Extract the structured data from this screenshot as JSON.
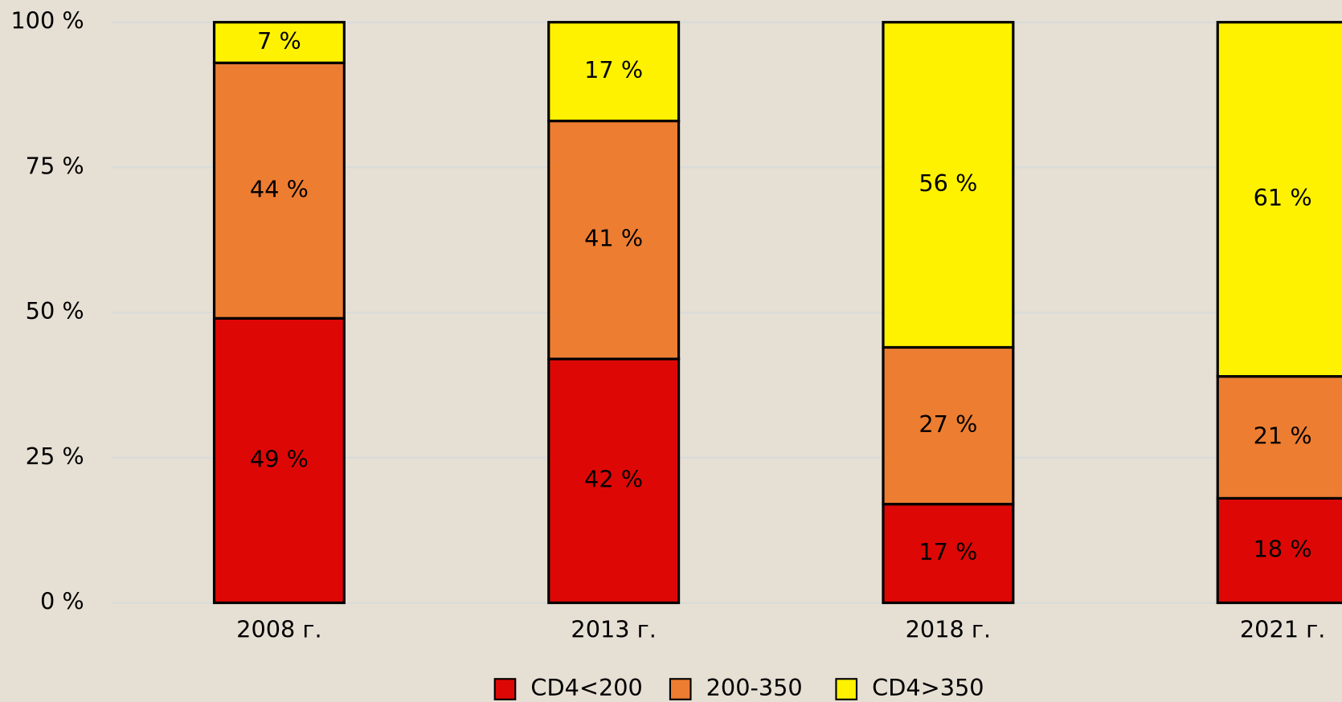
{
  "chart_data": {
    "type": "stacked_bar",
    "categories": [
      "2008 г.",
      "2013 г.",
      "2018 г.",
      "2021 г."
    ],
    "series": [
      {
        "name": "CD4<200",
        "color": "#dd0806",
        "values": [
          49,
          42,
          17,
          18
        ],
        "value_labels": [
          "49 %",
          "42 %",
          "17 %",
          "18 %"
        ]
      },
      {
        "name": "200-350",
        "color": "#ed7d31",
        "values": [
          44,
          41,
          27,
          21
        ],
        "value_labels": [
          "44 %",
          "41 %",
          "27 %",
          "21 %"
        ]
      },
      {
        "name": "CD4>350",
        "color": "#fff200",
        "values": [
          7,
          17,
          56,
          61
        ],
        "value_labels": [
          "7 %",
          "17 %",
          "56 %",
          "61 %"
        ]
      }
    ],
    "ylim": [
      0,
      100
    ],
    "yticks": [
      {
        "value": 0,
        "label": "0 %"
      },
      {
        "value": 25,
        "label": "25 %"
      },
      {
        "value": 50,
        "label": "50 %"
      },
      {
        "value": 75,
        "label": "75 %"
      },
      {
        "value": 100,
        "label": "100 %"
      }
    ],
    "grid": true,
    "legend": "bottom"
  }
}
